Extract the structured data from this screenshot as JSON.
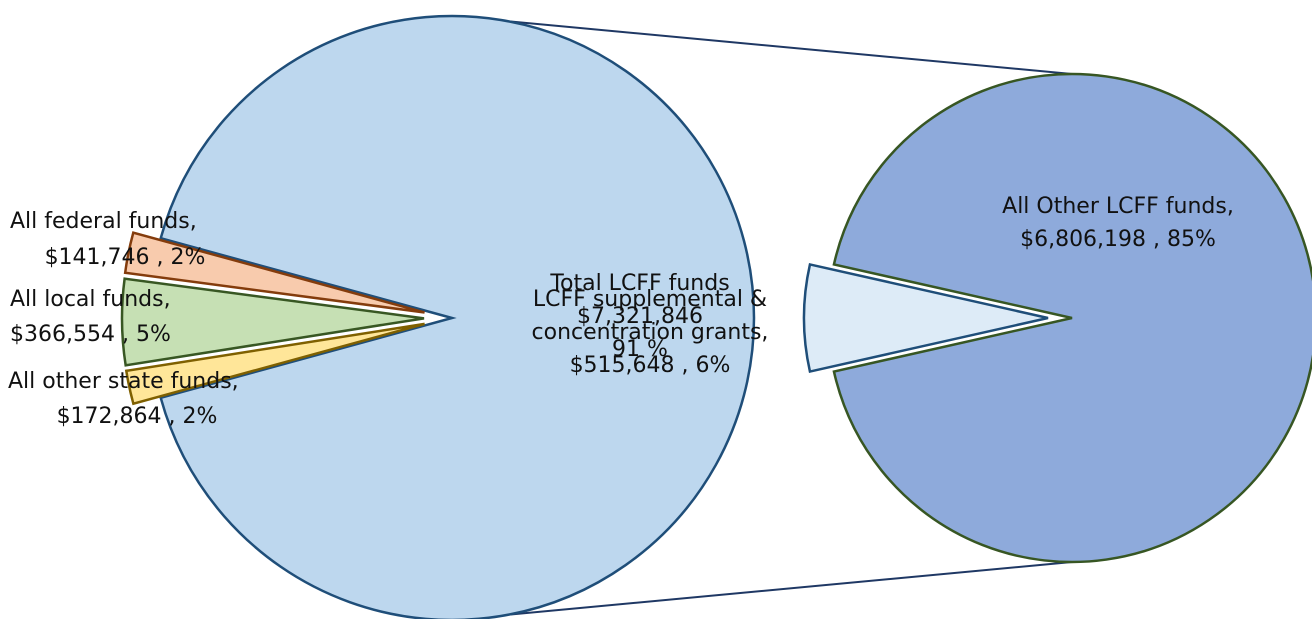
{
  "chart_data": {
    "type": "pie",
    "subtype": "pie-of-pie",
    "slices": [
      {
        "label": "All federal funds,",
        "value_text": "$141,746 , 2%",
        "value": 141746,
        "percent": 2,
        "color": "#ffe699",
        "stroke": "#7f6000"
      },
      {
        "label": "All local funds,",
        "value_text": "$366,554 , 5%",
        "value": 366554,
        "percent": 5,
        "color": "#c6e0b4",
        "stroke": "#385723"
      },
      {
        "label": "All other state funds,",
        "value_text": "$172,864 , 2%",
        "value": 172864,
        "percent": 2,
        "color": "#f8cbad",
        "stroke": "#843c0c"
      },
      {
        "label": "Total LCFF funds",
        "value_text": "$7,321,846 , 91 %",
        "value": 7321846,
        "percent": 91,
        "color": "#bdd7ee",
        "stroke": "#1f4e79"
      }
    ],
    "secondary": {
      "slices": [
        {
          "label": "All Other LCFF funds,",
          "value_text": "$6,806,198 , 85%",
          "value": 6806198,
          "percent": 85,
          "color": "#8eaadb",
          "stroke": "#375623"
        },
        {
          "label": "LCFF supplemental & concentration grants,",
          "value_text": "$515,648 , 6%",
          "value": 515648,
          "percent": 6,
          "color": "#ddebf7",
          "stroke": "#1f4e79"
        }
      ]
    },
    "connector_color": "#1f3864"
  }
}
